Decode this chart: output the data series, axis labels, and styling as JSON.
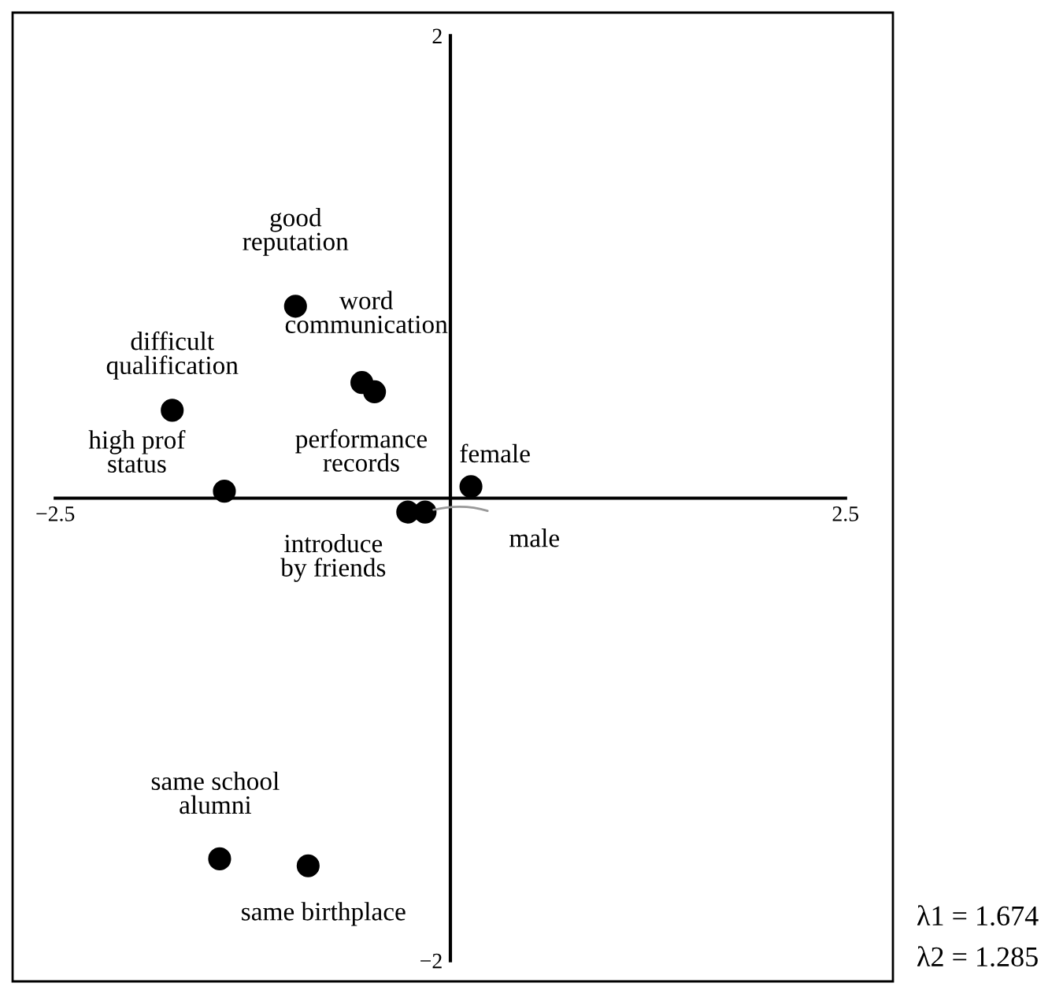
{
  "chart_data": {
    "type": "scatter",
    "x": [
      -0.98,
      -0.56,
      -0.48,
      -1.76,
      -1.43,
      0.13,
      -0.27,
      -0.16,
      -1.46,
      -0.9
    ],
    "values": [
      0.83,
      0.5,
      0.46,
      0.38,
      0.03,
      0.05,
      -0.06,
      -0.06,
      -1.56,
      -1.59
    ],
    "color": "#000000",
    "marker": "circle",
    "grid": false,
    "legend": false,
    "xlim": [
      -2.77,
      2.8
    ],
    "ylim": [
      -2.09,
      2.1
    ],
    "xticks": [
      {
        "value": -2.5,
        "label": "−2.5"
      },
      2.5
    ],
    "yticks": [
      {
        "value": -2,
        "label": "−2"
      },
      2
    ],
    "annotations": [
      {
        "text": "good\nreputation",
        "x": -0.98,
        "y": 0.83
      },
      {
        "text": "word\ncommunication",
        "x": -0.56,
        "y": 0.5
      },
      {
        "text": "performance\nrecords",
        "x": -0.48,
        "y": 0.46
      },
      {
        "text": "difficult\nqualification",
        "x": -1.76,
        "y": 0.38
      },
      {
        "text": "high prof\nstatus",
        "x": -1.43,
        "y": 0.03
      },
      {
        "text": "female",
        "x": 0.13,
        "y": 0.05
      },
      {
        "text": "introduce\nby friends",
        "x": -0.27,
        "y": -0.06
      },
      {
        "text": "male",
        "x": -0.16,
        "y": -0.06
      },
      {
        "text": "same school\nalumni",
        "x": -1.46,
        "y": -1.56
      },
      {
        "text": "same birthplace",
        "x": -0.9,
        "y": -1.59
      },
      "λ1 = 1.674",
      "λ2 = 1.285"
    ]
  }
}
